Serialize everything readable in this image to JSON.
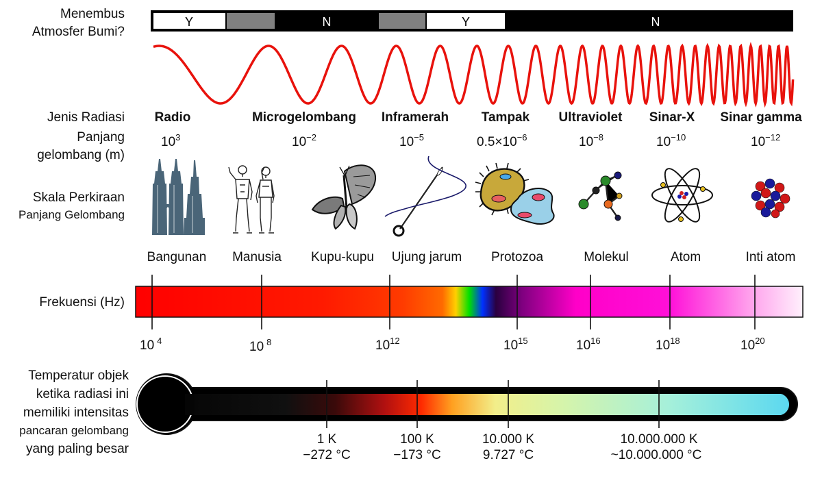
{
  "atmosphere": {
    "label_line1": "Menembus",
    "label_line2": "Atmosfer Bumi?",
    "segments": [
      "Y",
      "N",
      "Y",
      "N"
    ]
  },
  "radiation": {
    "label": "Jenis Radiasi",
    "types": [
      "Radio",
      "Microgelombang",
      "Inframerah",
      "Tampak",
      "Ultraviolet",
      "Sinar-X",
      "Sinar gamma"
    ]
  },
  "wavelength": {
    "label_line1": "Panjang",
    "label_line2": "gelombang (m)",
    "values": [
      {
        "base": "10",
        "exp": "3"
      },
      {
        "base": "10",
        "exp": "−2"
      },
      {
        "base": "10",
        "exp": "−5"
      },
      {
        "base": "0.5×10",
        "exp": "−6"
      },
      {
        "base": "10",
        "exp": "−8"
      },
      {
        "base": "10",
        "exp": "−10"
      },
      {
        "base": "10",
        "exp": "−12"
      }
    ]
  },
  "scale": {
    "label_line1": "Skala Perkiraan",
    "label_line2": "Panjang Gelombang",
    "items": [
      "Bangunan",
      "Manusia",
      "Kupu-kupu",
      "Ujung jarum",
      "Protozoa",
      "Molekul",
      "Atom",
      "Inti atom"
    ]
  },
  "frequency": {
    "label": "Frekuensi (Hz)",
    "ticks": [
      {
        "base": "10",
        "exp": "4"
      },
      {
        "base": "10",
        "exp": "8"
      },
      {
        "base": "10",
        "exp": "12"
      },
      {
        "base": "10",
        "exp": "15"
      },
      {
        "base": "10",
        "exp": "16"
      },
      {
        "base": "10",
        "exp": "18"
      },
      {
        "base": "10",
        "exp": "20"
      }
    ]
  },
  "temperature": {
    "label_lines": [
      "Temperatur objek",
      "ketika radiasi ini",
      "memiliki intensitas",
      "pancaran gelombang",
      "yang paling besar"
    ],
    "ticks": [
      {
        "k": "1 K",
        "c": "−272 °C"
      },
      {
        "k": "100 K",
        "c": "−173 °C"
      },
      {
        "k": "10.000 K",
        "c": "9.727 °C"
      },
      {
        "k": "10.000.000 K",
        "c": "~10.000.000 °C"
      }
    ]
  },
  "colors": {
    "wave": "#e8120c",
    "dark": "#000000",
    "gray": "#808080",
    "building": "#4a6578"
  }
}
